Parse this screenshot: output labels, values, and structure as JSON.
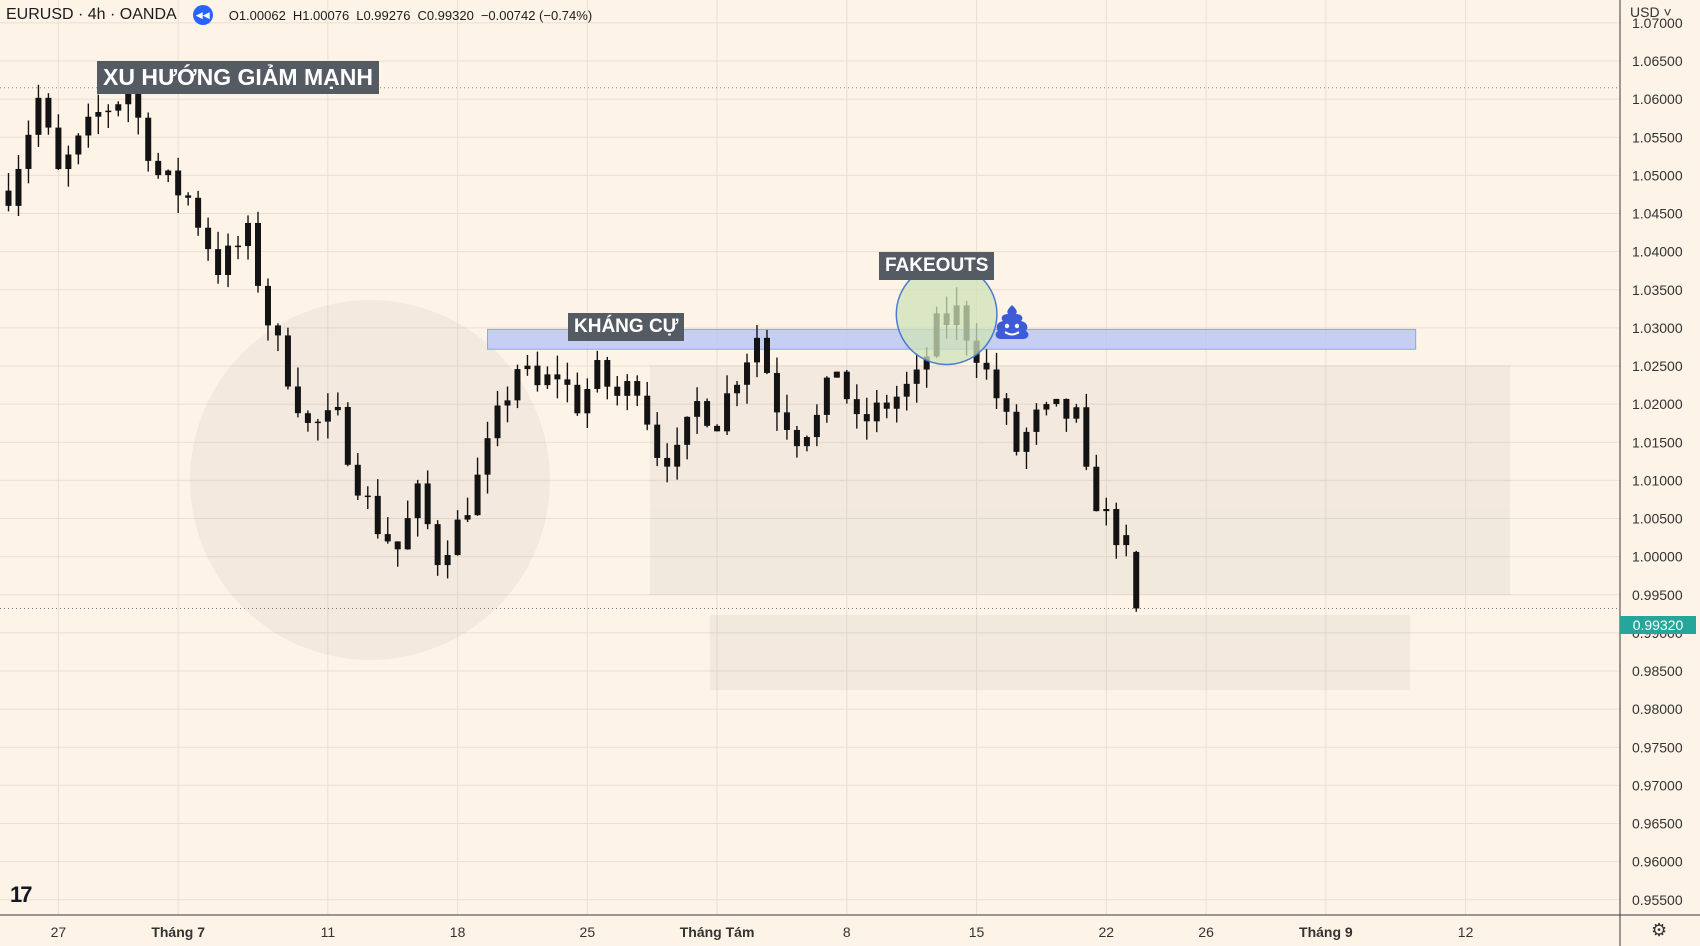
{
  "header": {
    "symbol": "EURUSD · 4h · OANDA",
    "replay_icon": "rewind-icon",
    "open_label": "O",
    "open": "1.00062",
    "high_label": "H",
    "high": "1.00076",
    "low_label": "L",
    "low": "0.99276",
    "close_label": "C",
    "close": "0.99320",
    "change": "−0.00742 (−0.74%)"
  },
  "currency": "USD",
  "currency_icon": "chevron-down-icon",
  "annotations": {
    "trend": "XU HƯỚNG GIẢM MẠNH",
    "resistance": "KHÁNG CỰ",
    "fakeouts": "FAKEOUTS",
    "emoji_icon": "poop-emoji-icon"
  },
  "last_price": "0.99320",
  "logo_icon": "tradingview-logo-icon",
  "settings_icon": "gear-icon",
  "colors": {
    "background": "#fdf3e7",
    "candle": "#131313",
    "resistance_zone": "#b3c3f5",
    "fakeout_circle": "#cfe3b8",
    "price_tag": "#26a69a",
    "label_bg": "#555b63"
  },
  "chart_data": {
    "type": "candlestick",
    "interval": "4h",
    "y_axis": {
      "ylim": [
        0.953,
        1.073
      ],
      "ticks": [
        "1.07000",
        "1.06500",
        "1.06000",
        "1.05500",
        "1.05000",
        "1.04500",
        "1.04000",
        "1.03500",
        "1.03000",
        "1.02500",
        "1.02000",
        "1.01500",
        "1.01000",
        "1.00500",
        "1.00000",
        "0.99500",
        "0.99000",
        "0.98500",
        "0.98000",
        "0.97500",
        "0.97000",
        "0.96500",
        "0.96000",
        "0.95500"
      ],
      "tick_values": [
        1.07,
        1.065,
        1.06,
        1.055,
        1.05,
        1.045,
        1.04,
        1.035,
        1.03,
        1.025,
        1.02,
        1.015,
        1.01,
        1.005,
        1.0,
        0.995,
        0.99,
        0.985,
        0.98,
        0.975,
        0.97,
        0.965,
        0.96,
        0.955
      ]
    },
    "x_axis": {
      "labels": [
        "27",
        "Tháng 7",
        "11",
        "18",
        "25",
        "Tháng Tám",
        "8",
        "15",
        "22",
        "26",
        "Tháng 9",
        "12"
      ],
      "label_index": [
        5,
        17,
        32,
        45,
        58,
        71,
        84,
        97,
        110,
        120,
        132,
        146
      ]
    },
    "horizontal_lines": [
      1.0615,
      0.9932
    ],
    "resistance_zone": {
      "low": 1.0272,
      "high": 1.0298,
      "from_index": 48,
      "to_index": 141
    },
    "fakeout_circle": {
      "index": 94,
      "price": 1.0318,
      "radius_price": 0.0066
    },
    "path_points": [
      [
        0,
        1.048
      ],
      [
        3,
        1.06
      ],
      [
        5,
        1.05
      ],
      [
        9,
        1.058
      ],
      [
        12,
        1.061
      ],
      [
        15,
        1.05
      ],
      [
        18,
        1.047
      ],
      [
        21,
        1.038
      ],
      [
        24,
        1.042
      ],
      [
        26,
        1.031
      ],
      [
        28,
        1.024
      ],
      [
        30,
        1.017
      ],
      [
        33,
        1.018
      ],
      [
        35,
        1.01
      ],
      [
        37,
        1.004
      ],
      [
        39,
        1.001
      ],
      [
        41,
        1.008
      ],
      [
        43,
        1.0
      ],
      [
        45,
        1.004
      ],
      [
        47,
        1.01
      ],
      [
        49,
        1.018
      ],
      [
        51,
        1.025
      ],
      [
        53,
        1.022
      ],
      [
        55,
        1.024
      ],
      [
        57,
        1.02
      ],
      [
        59,
        1.024
      ],
      [
        61,
        1.021
      ],
      [
        63,
        1.023
      ],
      [
        65,
        1.014
      ],
      [
        67,
        1.013
      ],
      [
        69,
        1.02
      ],
      [
        71,
        1.018
      ],
      [
        73,
        1.024
      ],
      [
        75,
        1.029
      ],
      [
        77,
        1.02
      ],
      [
        79,
        1.016
      ],
      [
        81,
        1.018
      ],
      [
        83,
        1.025
      ],
      [
        85,
        1.017
      ],
      [
        87,
        1.019
      ],
      [
        89,
        1.021
      ],
      [
        91,
        1.023
      ],
      [
        93,
        1.03
      ],
      [
        95,
        1.032
      ],
      [
        97,
        1.027
      ],
      [
        99,
        1.021
      ],
      [
        101,
        1.014
      ],
      [
        103,
        1.018
      ],
      [
        105,
        1.019
      ],
      [
        107,
        1.018
      ],
      [
        108,
        1.01
      ],
      [
        110,
        1.005
      ],
      [
        112,
        1.001
      ],
      [
        113,
        0.9932
      ]
    ],
    "last_candle": {
      "index": 113,
      "open": 1.00062,
      "high": 1.00076,
      "low": 0.99276,
      "close": 0.9932
    }
  }
}
